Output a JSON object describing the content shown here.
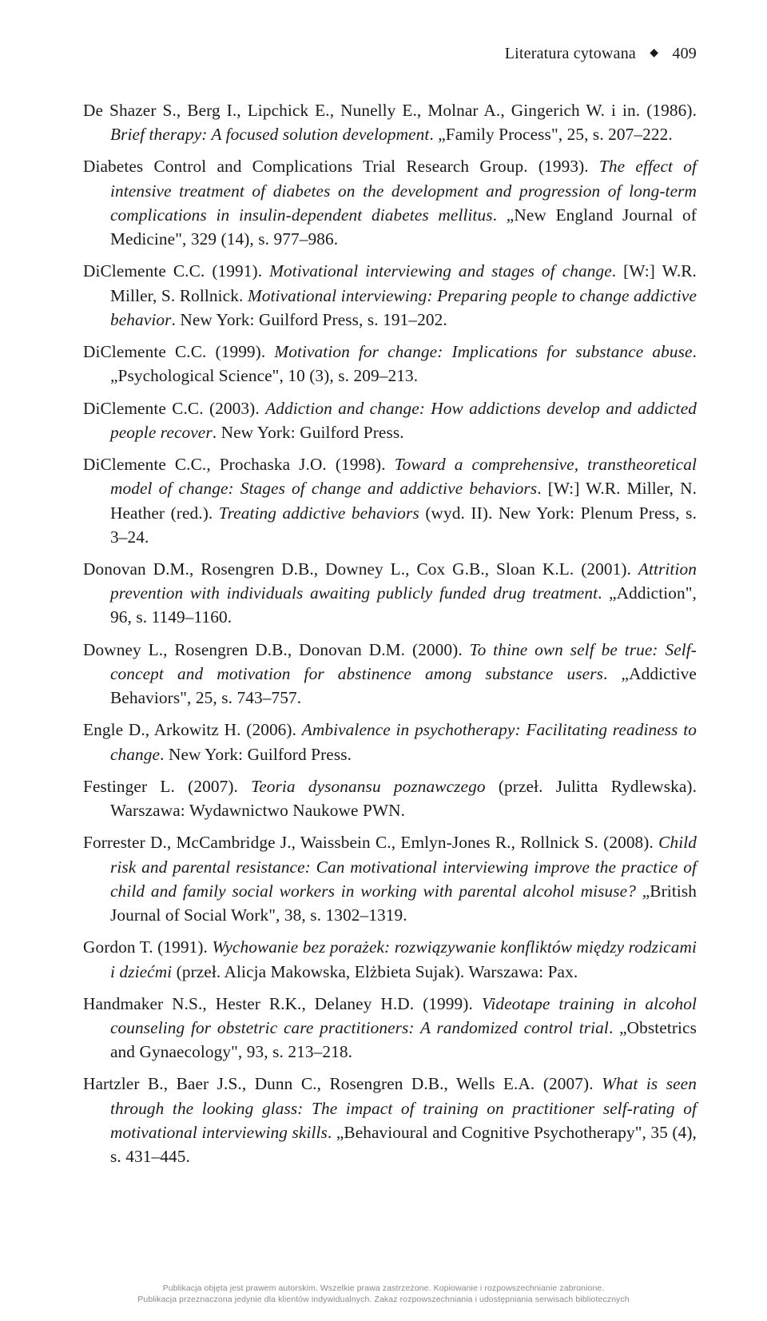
{
  "header": {
    "section_title": "Literatura cytowana",
    "page_number": "409",
    "separator_glyph": "◆"
  },
  "references": [
    {
      "authors": "De Shazer S., Berg I., Lipchick E., Nunelly E., Molnar A., Gingerich W. i in.",
      "year": "(1986).",
      "title_italic": "Brief therapy: A focused solution development",
      "tail": ". „Family Process\", 25, s. 207–222."
    },
    {
      "authors": "Diabetes Control and Complications Trial Research Group.",
      "year": "(1993).",
      "title_italic": "The effect of intensive treatment of diabetes on the development and progression of long-term complications in insulin-dependent diabetes mellitus",
      "tail": ". „New England Journal of Medicine\", 329 (14), s. 977–986."
    },
    {
      "authors": "DiClemente C.C.",
      "year": "(1991).",
      "title_italic": "Motivational interviewing and stages of change",
      "mid": ". [W:] W.R. Miller, S. Rollnick. ",
      "title_italic2": "Motivational interviewing: Preparing people to change addictive behavior",
      "tail": ". New York: Guilford Press, s. 191–202."
    },
    {
      "authors": "DiClemente C.C.",
      "year": "(1999).",
      "title_italic": "Motivation for change: Implications for substance abuse",
      "tail": ". „Psychological Science\", 10 (3), s. 209–213."
    },
    {
      "authors": "DiClemente C.C.",
      "year": "(2003).",
      "title_italic": "Addiction and change: How addictions develop and addicted people recover",
      "tail": ". New York: Guilford Press."
    },
    {
      "authors": "DiClemente C.C., Prochaska J.O.",
      "year": "(1998).",
      "title_italic": "Toward a comprehensive, transtheoretical model of change: Stages of change and addictive behaviors",
      "mid": ". [W:] W.R. Miller, N. Heather (red.). ",
      "title_italic2": "Treating addictive behaviors",
      "tail": " (wyd. II). New York: Plenum Press, s. 3–24."
    },
    {
      "authors": "Donovan D.M., Rosengren D.B., Downey L., Cox G.B., Sloan K.L.",
      "year": "(2001).",
      "title_italic": "Attrition prevention with individuals awaiting publicly funded drug treatment",
      "tail": ". „Addiction\", 96, s. 1149–1160."
    },
    {
      "authors": "Downey L., Rosengren D.B., Donovan D.M.",
      "year": "(2000).",
      "title_italic": "To thine own self be true: Self-concept and motivation for abstinence among substance users",
      "tail": ". „Addictive Behaviors\", 25, s. 743–757."
    },
    {
      "authors": "Engle D., Arkowitz H.",
      "year": "(2006).",
      "title_italic": "Ambivalence in psychotherapy: Facilitating readiness to change",
      "tail": ". New York: Guilford Press."
    },
    {
      "authors": "Festinger L.",
      "year": "(2007).",
      "title_italic": "Teoria dysonansu poznawczego",
      "tail": " (przeł. Julitta Rydlewska). Warszawa: Wydawnictwo Naukowe PWN."
    },
    {
      "authors": "Forrester D., McCambridge J., Waissbein C., Emlyn-Jones R., Rollnick S.",
      "year": "(2008).",
      "title_italic": "Child risk and parental resistance: Can motivational interviewing improve the practice of child and family social workers in working with parental alcohol misuse?",
      "tail": " „British Journal of Social Work\", 38, s. 1302–1319."
    },
    {
      "authors": "Gordon T.",
      "year": "(1991).",
      "title_italic": "Wychowanie bez porażek: rozwiązywanie konfliktów między rodzicami i dziećmi",
      "tail": " (przeł. Alicja Makowska, Elżbieta Sujak). Warszawa: Pax."
    },
    {
      "authors": "Handmaker N.S., Hester R.K., Delaney H.D.",
      "year": "(1999).",
      "title_italic": "Videotape training in alcohol counseling for obstetric care practitioners: A randomized control trial",
      "tail": ". „Obstetrics and Gynaecology\", 93, s. 213–218."
    },
    {
      "authors": "Hartzler B., Baer J.S., Dunn C., Rosengren D.B., Wells E.A.",
      "year": "(2007).",
      "title_italic": "What is seen through the looking glass: The impact of training on practitioner self-rating of motivational interviewing skills",
      "tail": ". „Behavioural and Cognitive Psychotherapy\", 35 (4), s. 431–445."
    }
  ],
  "footer": {
    "line1": "Publikacja objęta jest prawem autorskim. Wszelkie prawa zastrzeżone. Kopiowanie i rozpowszechnianie zabronione.",
    "line2": "Publikacja przeznaczona jedynie dla klientów indywidualnych. Zakaz rozpowszechniania i udostępniania serwisach bibliotecznych"
  }
}
